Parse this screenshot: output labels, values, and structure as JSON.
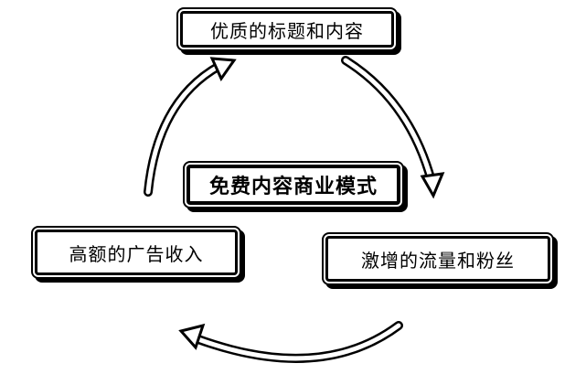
{
  "diagram": {
    "center_title": "免费内容商业模式",
    "nodes": {
      "top": "优质的标题和内容",
      "right": "激增的流量和粉丝",
      "left": "高额的广告收入"
    },
    "arrows": [
      {
        "from": "top",
        "to": "right"
      },
      {
        "from": "right",
        "to": "left"
      },
      {
        "from": "left",
        "to": "top"
      }
    ]
  }
}
